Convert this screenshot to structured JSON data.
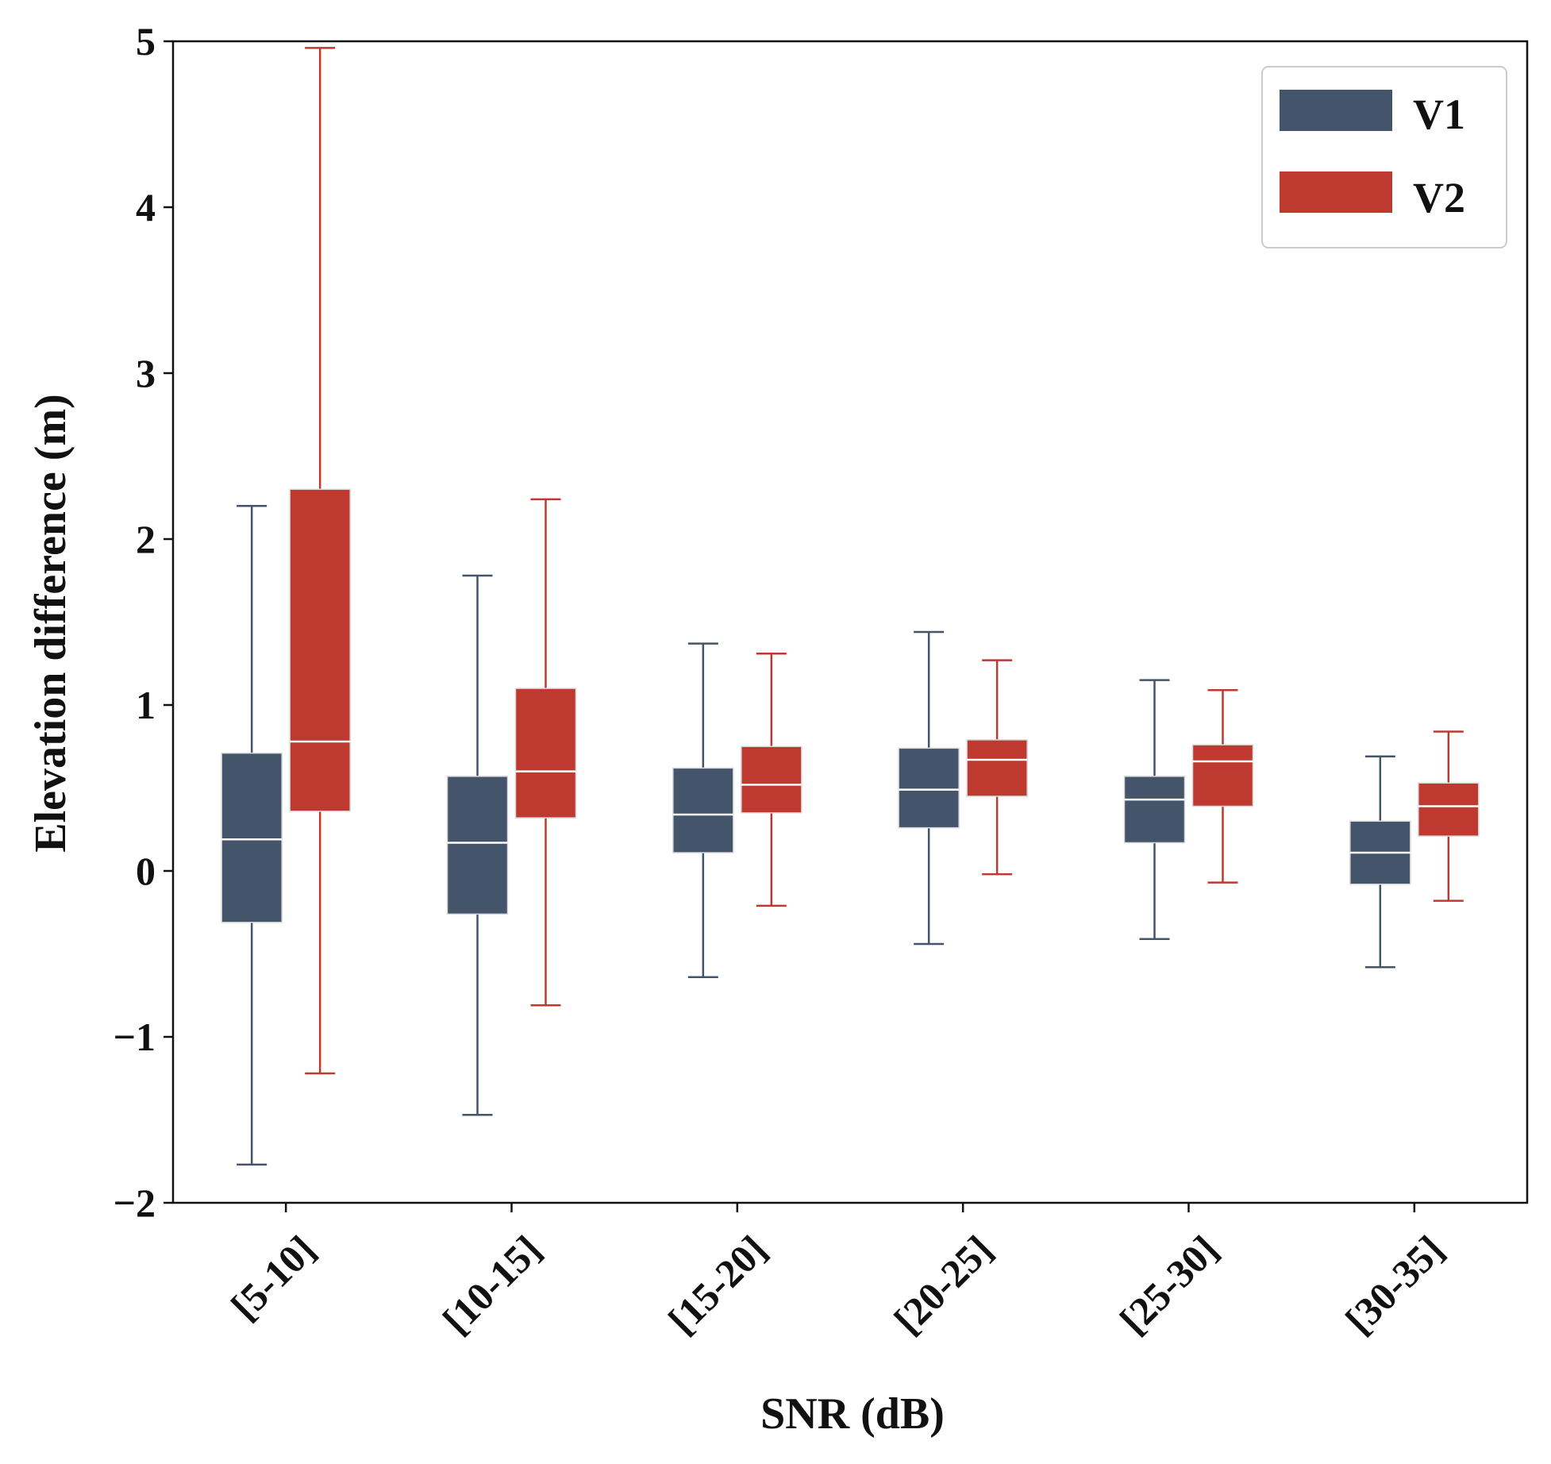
{
  "chart_data": {
    "type": "boxplot",
    "title": "",
    "xlabel": "SNR (dB)",
    "ylabel": "Elevation difference (m)",
    "ylim": [
      -2,
      5
    ],
    "yticks": [
      5,
      4,
      3,
      2,
      1,
      0,
      -1,
      -2
    ],
    "ytick_labels": [
      "5",
      "4",
      "3",
      "2",
      "1",
      "0",
      "−1",
      "−2"
    ],
    "categories": [
      "[5-10]",
      "[10-15]",
      "[15-20]",
      "[20-25]",
      "[25-30]",
      "[30-35]"
    ],
    "legend_position": "top-right",
    "series": [
      {
        "name": "V1",
        "color": "#44546a",
        "boxes": [
          {
            "whislo": -1.77,
            "q1": -0.31,
            "med": 0.19,
            "q3": 0.71,
            "whishi": 2.2
          },
          {
            "whislo": -1.47,
            "q1": -0.26,
            "med": 0.17,
            "q3": 0.57,
            "whishi": 1.78
          },
          {
            "whislo": -0.64,
            "q1": 0.11,
            "med": 0.34,
            "q3": 0.62,
            "whishi": 1.37
          },
          {
            "whislo": -0.44,
            "q1": 0.26,
            "med": 0.49,
            "q3": 0.74,
            "whishi": 1.44
          },
          {
            "whislo": -0.41,
            "q1": 0.17,
            "med": 0.43,
            "q3": 0.57,
            "whishi": 1.15
          },
          {
            "whislo": -0.58,
            "q1": -0.08,
            "med": 0.11,
            "q3": 0.3,
            "whishi": 0.69
          }
        ]
      },
      {
        "name": "V2",
        "color": "#be3a30",
        "boxes": [
          {
            "whislo": -1.22,
            "q1": 0.36,
            "med": 0.78,
            "q3": 2.3,
            "whishi": 4.96
          },
          {
            "whislo": -0.81,
            "q1": 0.32,
            "med": 0.6,
            "q3": 1.1,
            "whishi": 2.24
          },
          {
            "whislo": -0.21,
            "q1": 0.35,
            "med": 0.52,
            "q3": 0.75,
            "whishi": 1.31
          },
          {
            "whislo": -0.02,
            "q1": 0.45,
            "med": 0.67,
            "q3": 0.79,
            "whishi": 1.27
          },
          {
            "whislo": -0.07,
            "q1": 0.39,
            "med": 0.66,
            "q3": 0.76,
            "whishi": 1.09
          },
          {
            "whislo": -0.18,
            "q1": 0.21,
            "med": 0.39,
            "q3": 0.53,
            "whishi": 0.84
          }
        ]
      }
    ]
  }
}
